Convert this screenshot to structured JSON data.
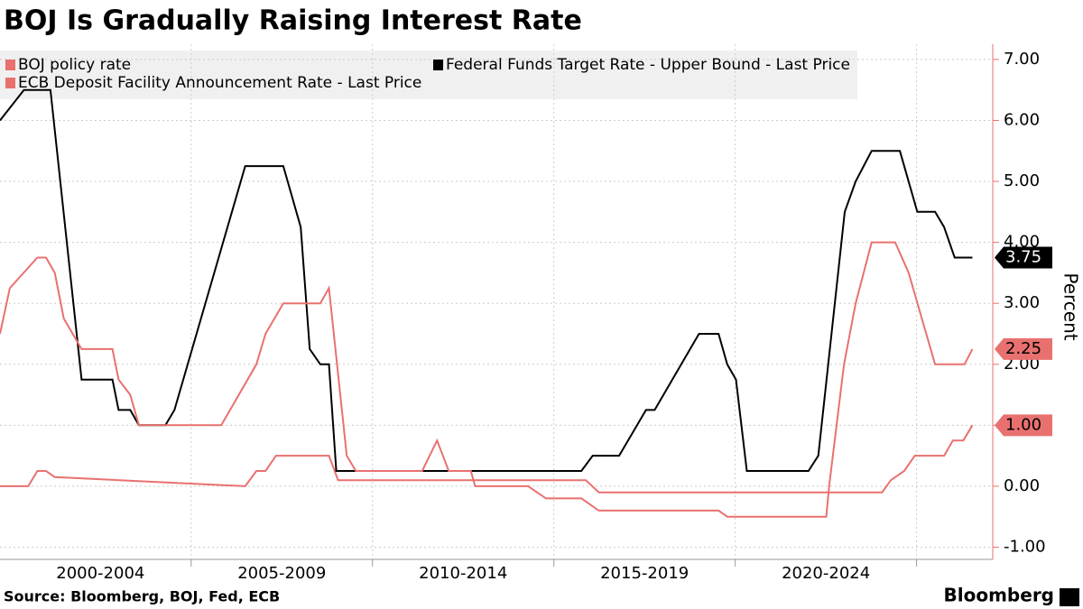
{
  "chart_data": {
    "type": "line",
    "title": "BOJ Is Gradually Raising Interest Rate",
    "y_label": "Percent",
    "source": "Source: Bloomberg, BOJ, Fed, ECB",
    "brand": "Bloomberg",
    "xlim": [
      1999.73,
      2027.1
    ],
    "xticks": [
      {
        "value": 2002.5,
        "label": "2000-2004"
      },
      {
        "value": 2007.5,
        "label": "2005-2009"
      },
      {
        "value": 2012.5,
        "label": "2010-2014"
      },
      {
        "value": 2017.5,
        "label": "2015-2019"
      },
      {
        "value": 2022.5,
        "label": "2020-2024"
      }
    ],
    "xgrid": [
      2005,
      2010,
      2015,
      2020,
      2025
    ],
    "ylim": [
      -1.2,
      7.25
    ],
    "yticks": [
      {
        "value": -1,
        "label": "-1.00"
      },
      {
        "value": 0,
        "label": "0.00"
      },
      {
        "value": 1,
        "label": "1.00"
      },
      {
        "value": 2,
        "label": "2.00"
      },
      {
        "value": 3,
        "label": "3.00"
      },
      {
        "value": 4,
        "label": "4.00"
      },
      {
        "value": 5,
        "label": "5.00"
      },
      {
        "value": 6,
        "label": "6.00"
      },
      {
        "value": 7,
        "label": "7.00"
      }
    ],
    "grid": true,
    "series": [
      {
        "name": "BOJ policy rate",
        "color": "#e8716f",
        "x": [
          1999.73,
          2000.51,
          2000.76,
          2001.0,
          2001.24,
          2006.49,
          2006.8,
          2007.05,
          2007.34,
          2008.8,
          2009.05,
          2015.88,
          2016.24,
          2024.05,
          2024.29,
          2024.66,
          2024.95,
          2025.76,
          2026.0,
          2026.29,
          2026.54
        ],
        "values": [
          0.0,
          0.0,
          0.25,
          0.25,
          0.15,
          0.0,
          0.25,
          0.25,
          0.5,
          0.5,
          0.1,
          0.1,
          -0.1,
          -0.1,
          0.1,
          0.25,
          0.5,
          0.5,
          0.75,
          0.75,
          1.0
        ],
        "value_labels": [
          null,
          null,
          null,
          null,
          null,
          null,
          null,
          null,
          null,
          null,
          null,
          null,
          null,
          null,
          null,
          null,
          null,
          null,
          null,
          null,
          "1.00"
        ]
      },
      {
        "name": "Federal Funds Target Rate - Upper Bound - Last Price",
        "color": "#000000",
        "x": [
          1999.73,
          2000.39,
          2001.12,
          2001.98,
          2002.83,
          2003.0,
          2003.32,
          2003.56,
          2004.29,
          2004.54,
          2006.49,
          2007.54,
          2008.02,
          2008.27,
          2008.56,
          2008.8,
          2009.0,
          2015.76,
          2016.07,
          2016.8,
          2017.54,
          2017.78,
          2019.0,
          2019.54,
          2019.78,
          2020.02,
          2020.32,
          2022.02,
          2022.29,
          2023.02,
          2023.32,
          2023.76,
          2024.54,
          2025.02,
          2025.51,
          2025.76,
          2026.05,
          2026.54
        ],
        "values": [
          6.0,
          6.5,
          6.5,
          1.75,
          1.75,
          1.25,
          1.25,
          1.0,
          1.0,
          1.25,
          5.25,
          5.25,
          4.25,
          2.25,
          2.0,
          2.0,
          0.25,
          0.25,
          0.5,
          0.5,
          1.25,
          1.25,
          2.5,
          2.5,
          2.0,
          1.75,
          0.25,
          0.25,
          0.5,
          4.5,
          5.0,
          5.5,
          5.5,
          4.5,
          4.5,
          4.25,
          3.75,
          3.75
        ],
        "value_labels": [
          null,
          null,
          null,
          null,
          null,
          null,
          null,
          null,
          null,
          null,
          null,
          null,
          null,
          null,
          null,
          null,
          null,
          null,
          null,
          null,
          null,
          null,
          null,
          null,
          null,
          null,
          null,
          null,
          null,
          null,
          null,
          null,
          null,
          null,
          null,
          null,
          null,
          "3.75"
        ]
      },
      {
        "name": "ECB Deposit Facility Announcement Rate - Last Price",
        "color": "#e8716f",
        "x": [
          1999.73,
          2000.0,
          2000.76,
          2001.0,
          2001.24,
          2001.49,
          2001.98,
          2002.83,
          2003.0,
          2003.32,
          2003.56,
          2005.83,
          2006.8,
          2007.05,
          2007.54,
          2008.56,
          2008.8,
          2009.29,
          2009.54,
          2011.37,
          2011.78,
          2012.1,
          2012.71,
          2012.83,
          2014.29,
          2014.78,
          2015.76,
          2016.24,
          2019.54,
          2019.78,
          2022.51,
          2022.59,
          2023.0,
          2023.32,
          2023.76,
          2024.41,
          2024.78,
          2025.51,
          2026.32,
          2026.54
        ],
        "values": [
          2.5,
          3.25,
          3.75,
          3.75,
          3.5,
          2.75,
          2.25,
          2.25,
          1.75,
          1.5,
          1.0,
          1.0,
          2.0,
          2.5,
          3.0,
          3.0,
          3.25,
          0.5,
          0.25,
          0.25,
          0.75,
          0.25,
          0.25,
          0.0,
          0.0,
          -0.2,
          -0.2,
          -0.4,
          -0.4,
          -0.5,
          -0.5,
          0.0,
          2.0,
          3.0,
          4.0,
          4.0,
          3.5,
          2.0,
          2.0,
          2.25
        ],
        "value_labels": [
          null,
          null,
          null,
          null,
          null,
          null,
          null,
          null,
          null,
          null,
          null,
          null,
          null,
          null,
          null,
          null,
          null,
          null,
          null,
          null,
          null,
          null,
          null,
          null,
          null,
          null,
          null,
          null,
          null,
          null,
          null,
          null,
          null,
          null,
          null,
          null,
          null,
          null,
          null,
          "2.25"
        ]
      }
    ]
  }
}
